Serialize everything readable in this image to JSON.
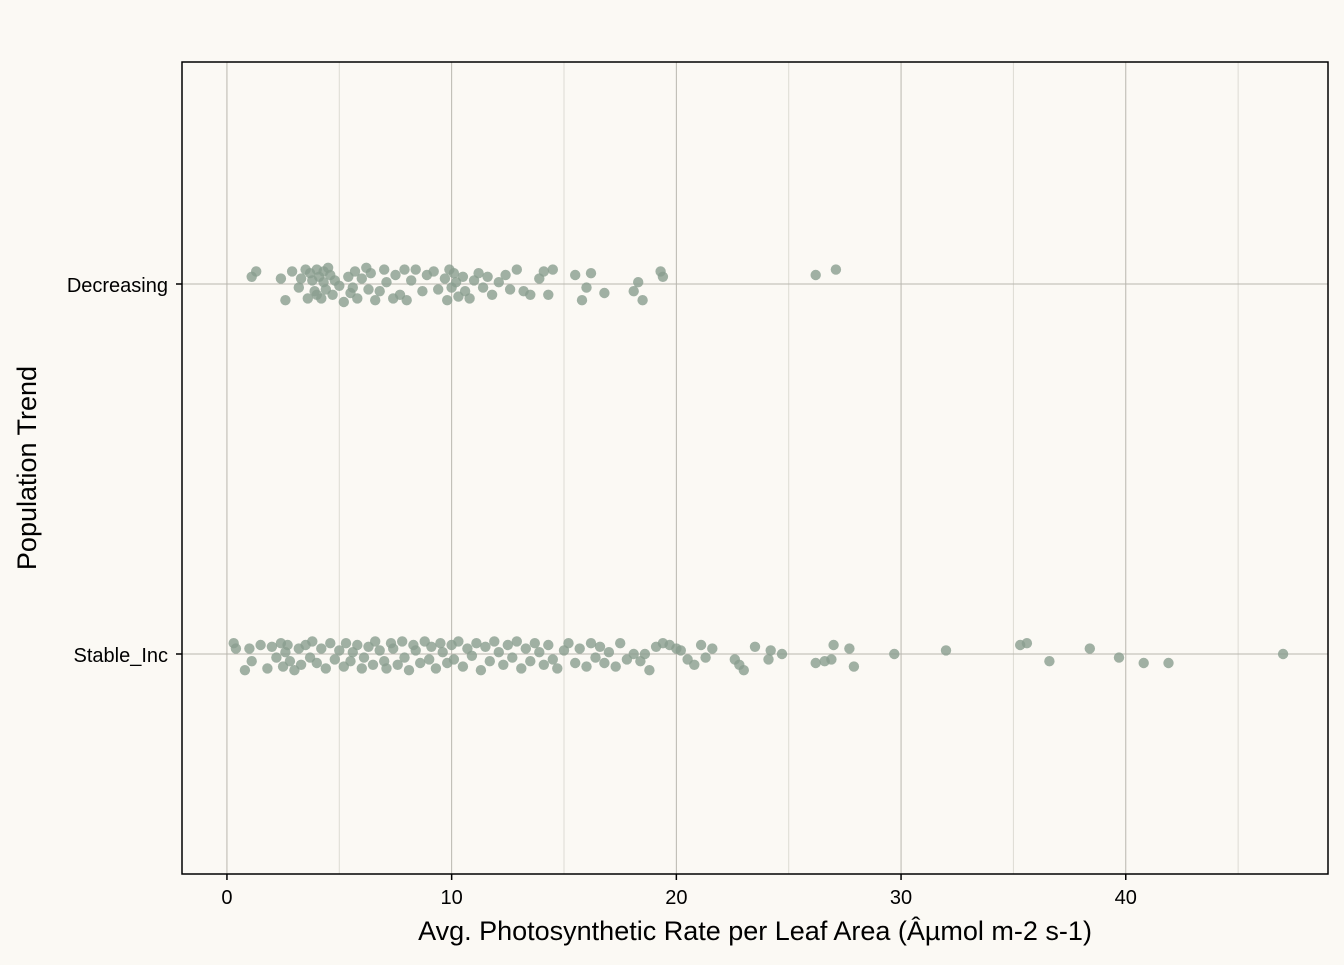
{
  "chart_data": {
    "type": "scatter",
    "title": "",
    "xlabel": "Avg. Photosynthetic Rate per Leaf Area (Âµmol m-2 s-1)",
    "ylabel": "Population Trend",
    "xlim": [
      -2,
      49
    ],
    "x_ticks": [
      0,
      10,
      20,
      30,
      40
    ],
    "x_tick_labels": [
      "0",
      "10",
      "20",
      "30",
      "40"
    ],
    "categories": [
      "Decreasing",
      "Stable_Inc"
    ],
    "grid": true,
    "legend": "none",
    "colors": {
      "background": "#fbf9f4",
      "point": "#8a9e8e",
      "grid_major": "#b8b6ae",
      "grid_minor": "#dddbd3",
      "axis": "#000000"
    },
    "series": [
      {
        "category": "Decreasing",
        "x": [
          1.1,
          1.3,
          2.4,
          2.6,
          2.9,
          3.2,
          3.3,
          3.5,
          3.6,
          3.7,
          3.8,
          3.9,
          4.0,
          4.0,
          4.1,
          4.2,
          4.3,
          4.3,
          4.4,
          4.5,
          4.6,
          4.7,
          4.8,
          5.0,
          5.2,
          5.4,
          5.5,
          5.6,
          5.7,
          5.8,
          6.0,
          6.2,
          6.3,
          6.4,
          6.6,
          6.8,
          7.0,
          7.1,
          7.4,
          7.5,
          7.7,
          7.9,
          8.0,
          8.2,
          8.4,
          8.7,
          8.9,
          9.2,
          9.4,
          9.7,
          9.8,
          9.9,
          10.0,
          10.1,
          10.2,
          10.3,
          10.5,
          10.6,
          10.8,
          11.0,
          11.2,
          11.4,
          11.6,
          11.8,
          12.1,
          12.4,
          12.6,
          12.9,
          13.2,
          13.5,
          13.9,
          14.1,
          14.3,
          14.5,
          15.5,
          15.8,
          16.0,
          16.2,
          16.8,
          18.1,
          18.3,
          18.5,
          19.3,
          19.4,
          26.2,
          27.1
        ],
        "y": [
          0.04,
          0.07,
          0.03,
          -0.09,
          0.07,
          -0.02,
          0.03,
          0.08,
          -0.08,
          0.06,
          0.02,
          -0.04,
          -0.06,
          0.08,
          0.04,
          -0.08,
          0.01,
          0.07,
          -0.03,
          0.09,
          0.05,
          -0.06,
          0.02,
          -0.01,
          -0.1,
          0.04,
          -0.05,
          -0.02,
          0.07,
          -0.08,
          0.03,
          0.09,
          -0.03,
          0.06,
          -0.09,
          -0.04,
          0.08,
          0.01,
          -0.08,
          0.05,
          -0.06,
          0.08,
          -0.09,
          0.02,
          0.08,
          -0.04,
          0.05,
          0.07,
          -0.03,
          0.03,
          -0.09,
          0.08,
          -0.02,
          0.06,
          0.01,
          -0.07,
          0.04,
          -0.04,
          -0.08,
          0.02,
          0.06,
          -0.02,
          0.04,
          -0.06,
          0.01,
          0.05,
          -0.03,
          0.08,
          -0.04,
          -0.06,
          0.03,
          0.07,
          -0.06,
          0.08,
          0.05,
          -0.09,
          -0.02,
          0.06,
          -0.05,
          -0.04,
          0.01,
          -0.09,
          0.07,
          0.04,
          0.05,
          0.08
        ]
      },
      {
        "category": "Stable_Inc",
        "x": [
          0.3,
          0.4,
          0.8,
          1.0,
          1.1,
          1.5,
          1.8,
          2.0,
          2.2,
          2.4,
          2.5,
          2.6,
          2.7,
          2.8,
          3.0,
          3.2,
          3.3,
          3.5,
          3.7,
          3.8,
          4.0,
          4.2,
          4.4,
          4.6,
          4.8,
          5.0,
          5.2,
          5.3,
          5.5,
          5.6,
          5.8,
          6.0,
          6.1,
          6.3,
          6.5,
          6.6,
          6.8,
          7.0,
          7.1,
          7.3,
          7.4,
          7.6,
          7.8,
          7.9,
          8.1,
          8.3,
          8.4,
          8.6,
          8.8,
          9.0,
          9.1,
          9.3,
          9.5,
          9.6,
          9.8,
          10.0,
          10.1,
          10.3,
          10.5,
          10.7,
          10.9,
          11.1,
          11.3,
          11.5,
          11.7,
          11.9,
          12.1,
          12.3,
          12.5,
          12.7,
          12.9,
          13.1,
          13.3,
          13.5,
          13.7,
          13.9,
          14.1,
          14.3,
          14.5,
          14.7,
          15.0,
          15.2,
          15.5,
          15.7,
          16.0,
          16.2,
          16.4,
          16.6,
          16.8,
          17.0,
          17.3,
          17.5,
          17.8,
          18.1,
          18.4,
          18.6,
          18.8,
          19.1,
          19.4,
          19.7,
          20.0,
          20.2,
          20.5,
          20.8,
          21.1,
          21.3,
          21.6,
          22.6,
          22.8,
          23.0,
          23.5,
          24.1,
          24.2,
          24.7,
          26.2,
          26.6,
          26.9,
          27.0,
          27.7,
          27.9,
          29.7,
          32.0,
          35.3,
          35.6,
          36.6,
          38.4,
          39.7,
          40.8,
          41.9,
          47.0
        ],
        "y": [
          0.06,
          0.03,
          -0.09,
          0.03,
          -0.04,
          0.05,
          -0.08,
          0.04,
          -0.02,
          0.06,
          -0.07,
          0.01,
          0.05,
          -0.04,
          -0.09,
          0.03,
          -0.06,
          0.05,
          -0.02,
          0.07,
          -0.05,
          0.03,
          -0.08,
          0.06,
          -0.03,
          0.02,
          -0.07,
          0.06,
          -0.04,
          0.01,
          0.05,
          -0.08,
          -0.02,
          0.04,
          -0.06,
          0.07,
          0.02,
          -0.04,
          -0.08,
          0.06,
          0.03,
          -0.06,
          0.07,
          -0.02,
          -0.09,
          0.05,
          0.02,
          -0.05,
          0.07,
          -0.03,
          0.04,
          -0.08,
          0.06,
          0.01,
          -0.05,
          0.05,
          -0.03,
          0.07,
          -0.07,
          0.03,
          -0.01,
          0.06,
          -0.09,
          0.04,
          -0.04,
          0.07,
          0.01,
          -0.06,
          0.05,
          -0.02,
          0.07,
          -0.08,
          0.03,
          -0.04,
          0.06,
          0.01,
          -0.06,
          0.05,
          -0.03,
          -0.08,
          0.02,
          0.06,
          -0.05,
          0.03,
          -0.07,
          0.06,
          -0.02,
          0.04,
          -0.05,
          0.01,
          -0.07,
          0.06,
          -0.03,
          0.0,
          -0.04,
          0.0,
          -0.09,
          0.04,
          0.06,
          0.05,
          0.03,
          0.02,
          -0.03,
          -0.06,
          0.05,
          -0.02,
          0.03,
          -0.03,
          -0.06,
          -0.09,
          0.04,
          -0.03,
          0.02,
          0.0,
          -0.05,
          -0.04,
          -0.03,
          0.05,
          0.03,
          -0.07,
          0.0,
          0.02,
          0.05,
          0.06,
          -0.04,
          0.03,
          -0.02,
          -0.05,
          -0.05,
          0.0
        ]
      }
    ]
  }
}
